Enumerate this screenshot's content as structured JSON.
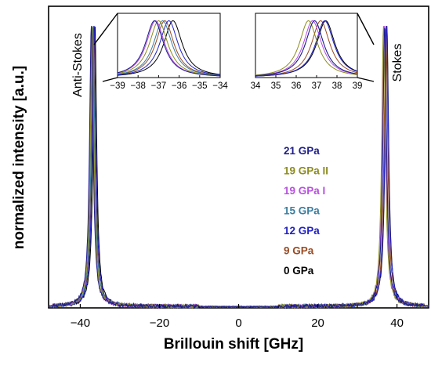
{
  "chart_data": {
    "type": "line",
    "xlabel": "Brillouin shift [GHz]",
    "ylabel": "normalized intensity [a.u.]",
    "xlim": [
      -48,
      48
    ],
    "xticks": [
      -40,
      -20,
      0,
      20,
      40
    ],
    "ylim": [
      0,
      1.07
    ],
    "grid": false,
    "legend_position": "center-right",
    "annotations": {
      "left_peak": "Anti-Stokes",
      "right_peak": "Stokes"
    },
    "series": [
      {
        "name": "21 GPa",
        "color": "#1e1e8c",
        "antistokes_x": -37.2,
        "stokes_x": 36.9
      },
      {
        "name": "19 GPa II",
        "color": "#8c8c1e",
        "antistokes_x": -37.0,
        "stokes_x": 36.6
      },
      {
        "name": "19 GPa I",
        "color": "#b84fe0",
        "antistokes_x": -37.15,
        "stokes_x": 36.8
      },
      {
        "name": "15 GPa",
        "color": "#3a7ea0",
        "antistokes_x": -36.8,
        "stokes_x": 36.9
      },
      {
        "name": "12 GPa",
        "color": "#2020c8",
        "antistokes_x": -36.5,
        "stokes_x": 37.4
      },
      {
        "name": "9 GPa",
        "color": "#9a4a22",
        "antistokes_x": -36.7,
        "stokes_x": 37.2
      },
      {
        "name": "0 GPa",
        "color": "#000000",
        "antistokes_x": -36.3,
        "stokes_x": 37.45
      }
    ],
    "peak_height": 1.0,
    "insets": [
      {
        "xlim": [
          -39,
          -34
        ],
        "xticks": [
          "-39",
          "-38",
          "-37",
          "-36",
          "-35",
          "-34"
        ],
        "peak": "anti-stokes"
      },
      {
        "xlim": [
          34,
          39
        ],
        "xticks": [
          "34",
          "35",
          "36",
          "37",
          "38",
          "39"
        ],
        "peak": "stokes"
      }
    ]
  }
}
